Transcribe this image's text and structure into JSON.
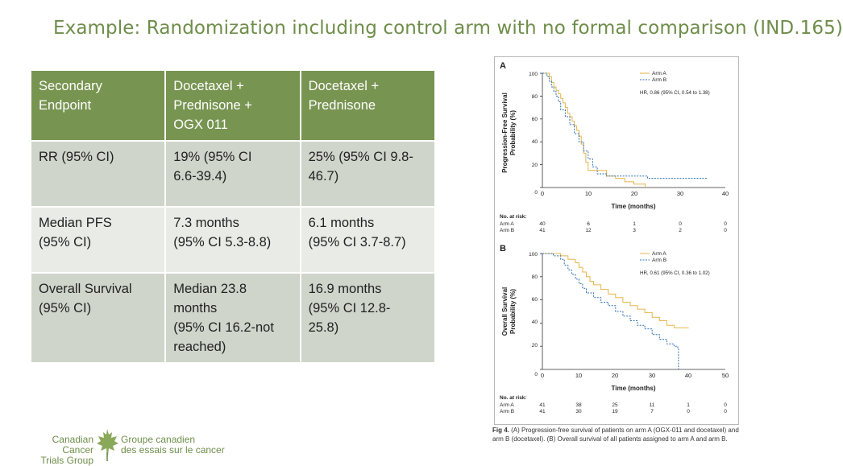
{
  "title": "Example: Randomization including control arm with no formal comparison (IND.165)",
  "table": {
    "headers": [
      "Secondary\nEndpoint",
      "Docetaxel +\nPrednisone +\nOGX 011",
      "Docetaxel +\nPrednisone"
    ],
    "rows": [
      [
        "RR (95% CI)",
        "19%  (95% CI\n6.6-39.4)",
        "25% (95% CI 9.8-\n46.7)"
      ],
      [
        "Median PFS\n(95% CI)",
        "7.3 months\n(95% CI 5.3-8.8)",
        "6.1 months\n(95% CI 3.7-8.7)"
      ],
      [
        "Overall Survival\n(95% CI)",
        "Median 23.8\nmonths\n(95% CI 16.2-not\nreached)",
        "16.9 months\n(95% CI 12.8-\n25.8)"
      ]
    ]
  },
  "figure": {
    "panel_a": {
      "letter": "A",
      "ylabel_line1": "Progression-Free Survival",
      "ylabel_line2": "Probability (%)",
      "y_ticks": [
        "100",
        "80",
        "60",
        "40",
        "20",
        "0"
      ],
      "x_ticks": [
        "0",
        "10",
        "20",
        "30",
        "40"
      ],
      "xlabel": "Time (months)",
      "legend_a": "Arm A",
      "legend_b": "Arm B",
      "hr": "HR, 0.86 (95% CI, 0.54 to 1.38)",
      "risk_title": "No. at risk:",
      "risk_label_a": "Arm A",
      "risk_label_b": "Arm B",
      "risk_a": [
        "40",
        "6",
        "1",
        "0",
        "0"
      ],
      "risk_b": [
        "41",
        "12",
        "3",
        "2",
        "0"
      ]
    },
    "panel_b": {
      "letter": "B",
      "ylabel_line1": "Overall Survival",
      "ylabel_line2": "Probability (%)",
      "y_ticks": [
        "100",
        "80",
        "60",
        "40",
        "20",
        "0"
      ],
      "x_ticks": [
        "0",
        "10",
        "20",
        "30",
        "40",
        "50"
      ],
      "xlabel": "Time (months)",
      "legend_a": "Arm A",
      "legend_b": "Arm B",
      "hr": "HR, 0.61 (95% CI, 0.36 to 1.02)",
      "risk_title": "No. at risk:",
      "risk_label_a": "Arm A",
      "risk_label_b": "Arm B",
      "risk_a": [
        "41",
        "38",
        "25",
        "11",
        "1",
        "0"
      ],
      "risk_b": [
        "41",
        "30",
        "19",
        "7",
        "0",
        "0"
      ]
    },
    "caption_label": "Fig 4.",
    "caption_text": " (A) Progression-free survival of patients on arm A (OGX-011 and docetaxel) and arm B (docetaxel). (B) Overall survival of all patients assigned to arm A and arm B."
  },
  "colors": {
    "arm_a": "#e5b54a",
    "arm_b": "#2b6fb5",
    "header": "#789451",
    "title": "#6f8d4a"
  },
  "logo": {
    "english": "Canadian Cancer\nTrials Group",
    "french": "Groupe canadien\ndes essais sur le cancer"
  },
  "chart_data": [
    {
      "type": "line",
      "title": "A",
      "xlabel": "Time (months)",
      "ylabel": "Progression-Free Survival Probability (%)",
      "xlim": [
        0,
        40
      ],
      "ylim": [
        0,
        100
      ],
      "series": [
        {
          "name": "Arm A",
          "style": "solid",
          "x": [
            0,
            1,
            1.5,
            2,
            2.5,
            3,
            3.5,
            4,
            4.5,
            5,
            5.5,
            6,
            6.5,
            7,
            7.5,
            8,
            8.5,
            9,
            9.5,
            10,
            14,
            16,
            18,
            20,
            22,
            22.5
          ],
          "y": [
            100,
            100,
            97,
            92,
            88,
            85,
            82,
            78,
            74,
            70,
            65,
            62,
            58,
            54,
            50,
            45,
            38,
            30,
            22,
            15,
            10,
            8,
            5,
            3,
            3,
            0
          ]
        },
        {
          "name": "Arm B",
          "style": "dashed",
          "x": [
            0,
            1,
            1.5,
            2,
            2.5,
            3,
            3.5,
            4,
            5,
            6,
            7,
            8,
            9,
            10,
            11,
            12,
            14,
            16,
            18,
            20,
            23,
            36
          ],
          "y": [
            100,
            97,
            93,
            88,
            84,
            80,
            75,
            68,
            62,
            55,
            47,
            40,
            32,
            25,
            18,
            12,
            10,
            10,
            10,
            10,
            8,
            8
          ]
        }
      ]
    },
    {
      "type": "line",
      "title": "B",
      "xlabel": "Time (months)",
      "ylabel": "Overall Survival Probability (%)",
      "xlim": [
        0,
        50
      ],
      "ylim": [
        0,
        100
      ],
      "series": [
        {
          "name": "Arm A",
          "style": "solid",
          "x": [
            0,
            3,
            5,
            7,
            9,
            10,
            11,
            12,
            13,
            14,
            16,
            18,
            20,
            22,
            24,
            26,
            28,
            30,
            32,
            34,
            36,
            40
          ],
          "y": [
            100,
            100,
            98,
            95,
            92,
            88,
            84,
            80,
            76,
            73,
            69,
            65,
            62,
            58,
            55,
            52,
            49,
            45,
            42,
            38,
            36,
            36
          ]
        },
        {
          "name": "Arm B",
          "style": "dashed",
          "x": [
            0,
            3,
            5,
            6,
            7,
            8,
            9,
            10,
            11,
            12,
            14,
            16,
            18,
            20,
            22,
            24,
            26,
            28,
            30,
            32,
            34,
            36,
            37,
            37.2
          ],
          "y": [
            100,
            98,
            95,
            90,
            86,
            82,
            78,
            74,
            70,
            66,
            62,
            58,
            55,
            50,
            46,
            42,
            38,
            35,
            30,
            26,
            22,
            20,
            18,
            0
          ]
        }
      ]
    }
  ]
}
